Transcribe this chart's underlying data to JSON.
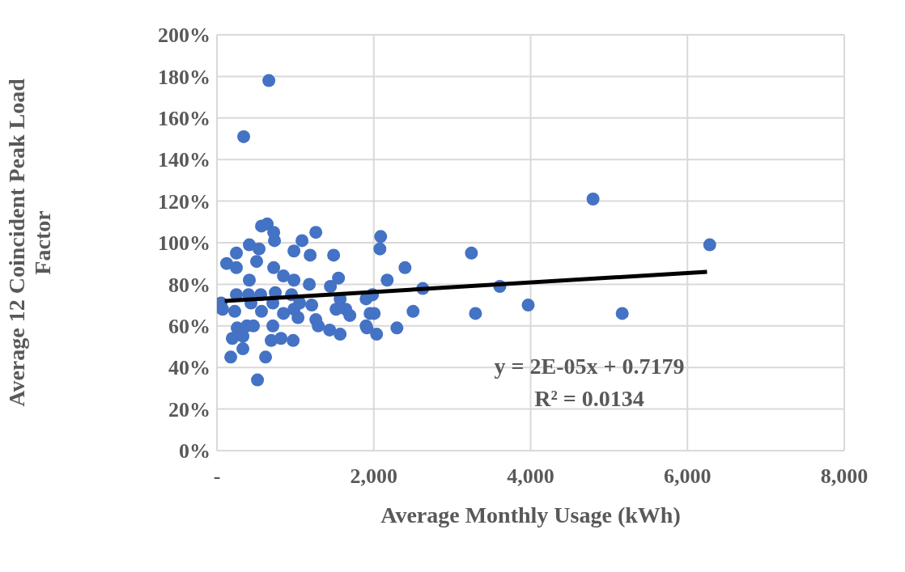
{
  "chart_data": {
    "type": "scatter",
    "xlabel": "Average Monthly Usage (kWh)",
    "ylabel": "Average 12 Coincident Peak Load Factor",
    "xlim": [
      0,
      8000
    ],
    "xticks": [
      {
        "value": 0,
        "label": "-"
      },
      {
        "value": 2000,
        "label": "2,000"
      },
      {
        "value": 4000,
        "label": "4,000"
      },
      {
        "value": 6000,
        "label": "6,000"
      },
      {
        "value": 8000,
        "label": "8,000"
      }
    ],
    "ylim": [
      0,
      2
    ],
    "yticks": [
      {
        "value": 0,
        "label": "0%"
      },
      {
        "value": 0.2,
        "label": "20%"
      },
      {
        "value": 0.4,
        "label": "40%"
      },
      {
        "value": 0.6,
        "label": "60%"
      },
      {
        "value": 0.8,
        "label": "80%"
      },
      {
        "value": 1,
        "label": "100%"
      },
      {
        "value": 1.2,
        "label": "120%"
      },
      {
        "value": 1.4,
        "label": "140%"
      },
      {
        "value": 1.6,
        "label": "160%"
      },
      {
        "value": 1.8,
        "label": "180%"
      },
      {
        "value": 2,
        "label": "200%"
      }
    ],
    "grid": true,
    "annotations": [
      "y = 2E-05x + 0.7179",
      "R² = 0.0134"
    ],
    "series": [
      {
        "color": "#4472c4",
        "marker": "circle",
        "x": [
          568,
          641,
          724,
          734,
          1261,
          413,
          537,
          506,
          248,
          124,
          248,
          1085,
          982,
          1189,
          1488,
          724,
          848,
          982,
          1178,
          1550,
          1447,
          413,
          248,
          403,
          558,
          744,
          52,
          72,
          227,
          434,
          568,
          713,
          951,
          1054,
          848,
          982,
          1209,
          1034,
          1261,
          1519,
          1643,
          1695,
          1571,
          1902,
          1953,
          1902,
          258,
          382,
          465,
          196,
          331,
          713,
          1292,
          1437,
          1571,
          692,
          817,
          972,
          331,
          176,
          620,
          517,
          2088,
          2078,
          3245,
          2398,
          2171,
          2625,
          3607,
          1984,
          2005,
          2501,
          3297,
          3969,
          1912,
          2036,
          2295,
          662,
          341,
          4796,
          6284,
          5168
        ],
        "values": [
          1.08,
          1.09,
          1.05,
          1.01,
          1.05,
          0.99,
          0.97,
          0.91,
          0.95,
          0.9,
          0.88,
          1.01,
          0.96,
          0.94,
          0.94,
          0.88,
          0.84,
          0.82,
          0.8,
          0.83,
          0.79,
          0.82,
          0.75,
          0.75,
          0.75,
          0.76,
          0.71,
          0.68,
          0.67,
          0.71,
          0.67,
          0.71,
          0.75,
          0.71,
          0.66,
          0.68,
          0.7,
          0.64,
          0.63,
          0.68,
          0.68,
          0.65,
          0.73,
          0.73,
          0.66,
          0.6,
          0.59,
          0.6,
          0.6,
          0.54,
          0.55,
          0.6,
          0.6,
          0.58,
          0.56,
          0.53,
          0.54,
          0.53,
          0.49,
          0.45,
          0.45,
          0.34,
          1.03,
          0.97,
          0.95,
          0.88,
          0.82,
          0.78,
          0.79,
          0.75,
          0.66,
          0.67,
          0.66,
          0.7,
          0.59,
          0.56,
          0.59,
          1.78,
          1.51,
          1.21,
          0.99,
          0.66
        ]
      },
      {
        "type": "line",
        "color": "#000000",
        "x": [
          100,
          6250
        ],
        "values": [
          0.72,
          0.86
        ]
      }
    ]
  }
}
